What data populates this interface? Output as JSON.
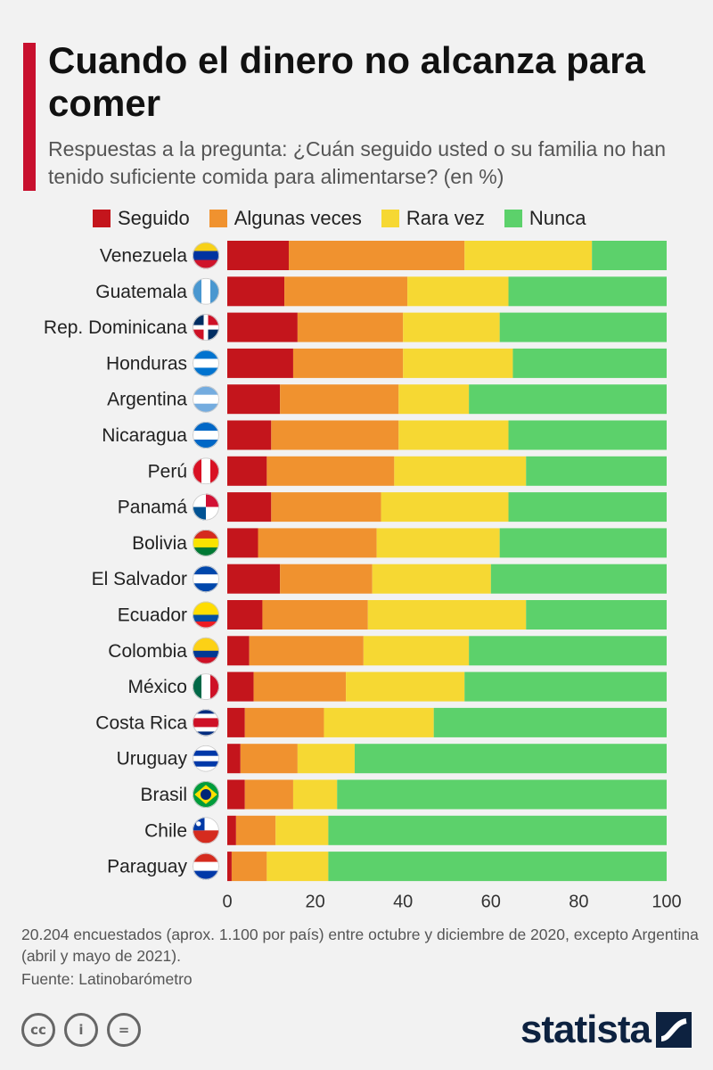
{
  "title": "Cuando el dinero no alcanza para comer",
  "subtitle": "Respuestas a la pregunta: ¿Cuán seguido usted o su familia no han tenido suficiente comida para alimentarse? (en %)",
  "footnote": "20.204 encuestados (aprox. 1.100 por país) entre octubre y diciembre de 2020, excepto Argentina (abril y mayo de 2021).",
  "source": "Fuente: Latinobarómetro",
  "brand": "statista",
  "license_icons": [
    "cc",
    "i",
    "="
  ],
  "colors": {
    "Seguido": "#c4151c",
    "Algunas veces": "#f0922f",
    "Rara vez": "#f6d833",
    "Nunca": "#5cd16b"
  },
  "chart_data": {
    "type": "bar",
    "orientation": "horizontal",
    "stacked": true,
    "title": "Cuando el dinero no alcanza para comer",
    "xlabel": "",
    "ylabel": "",
    "xlim": [
      0,
      100
    ],
    "xticks": [
      0,
      20,
      40,
      60,
      80,
      100
    ],
    "legend": "top",
    "grid": false,
    "categories": [
      "Venezuela",
      "Guatemala",
      "Rep. Dominicana",
      "Honduras",
      "Argentina",
      "Nicaragua",
      "Perú",
      "Panamá",
      "Bolivia",
      "El Salvador",
      "Ecuador",
      "Colombia",
      "México",
      "Costa Rica",
      "Uruguay",
      "Brasil",
      "Chile",
      "Paraguay"
    ],
    "flag_icons": [
      "flag-venezuela-icon",
      "flag-guatemala-icon",
      "flag-dominican-republic-icon",
      "flag-honduras-icon",
      "flag-argentina-icon",
      "flag-nicaragua-icon",
      "flag-peru-icon",
      "flag-panama-icon",
      "flag-bolivia-icon",
      "flag-el-salvador-icon",
      "flag-ecuador-icon",
      "flag-colombia-icon",
      "flag-mexico-icon",
      "flag-costa-rica-icon",
      "flag-uruguay-icon",
      "flag-brazil-icon",
      "flag-chile-icon",
      "flag-paraguay-icon"
    ],
    "series": [
      {
        "name": "Seguido",
        "values": [
          14,
          13,
          16,
          15,
          12,
          10,
          9,
          10,
          7,
          12,
          8,
          5,
          6,
          4,
          3,
          4,
          2,
          1
        ]
      },
      {
        "name": "Algunas veces",
        "values": [
          40,
          28,
          24,
          25,
          27,
          29,
          29,
          25,
          27,
          21,
          24,
          26,
          21,
          18,
          13,
          11,
          9,
          8
        ]
      },
      {
        "name": "Rara vez",
        "values": [
          29,
          23,
          22,
          25,
          16,
          25,
          30,
          29,
          28,
          27,
          36,
          24,
          27,
          25,
          13,
          10,
          12,
          14
        ]
      },
      {
        "name": "Nunca",
        "values": [
          17,
          36,
          38,
          35,
          45,
          36,
          32,
          36,
          38,
          40,
          32,
          45,
          46,
          53,
          71,
          75,
          77,
          77
        ]
      }
    ]
  }
}
